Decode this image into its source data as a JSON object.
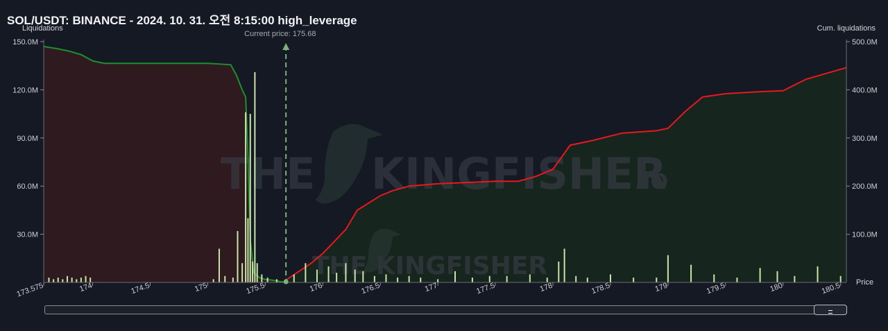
{
  "header": {
    "title": "SOL/USDT: BINANCE - 2024. 10. 31. 오전 8:15:00 high_leverage"
  },
  "watermark": {
    "brand": "THE KINGFISHER",
    "brand_large_left": "THE",
    "brand_large_right": "KINGFISHER",
    "suffix": ".IO"
  },
  "colors": {
    "background": "#151924",
    "long_fill": "#2e1a1f",
    "short_fill": "#17251f",
    "cum_long_line": "#1f8f2e",
    "cum_short_line": "#e8191d",
    "bars": "#c8e6a8",
    "price_marker": "#7fb07a"
  },
  "chart_data": {
    "type": "bar",
    "title": "SOL/USDT: BINANCE - 2024. 10. 31. 오전 8:15:00 high_leverage",
    "xlabel": "Price",
    "ylabel": "Liquidations",
    "y2label": "Cum. liquidations",
    "current_price": 175.68,
    "current_price_label": "Current price: 175.68",
    "xlim": [
      173.575,
      180.55
    ],
    "ylim": [
      0,
      150
    ],
    "y2lim": [
      0,
      500
    ],
    "x_ticks": [
      "173.575",
      "174",
      "174.5",
      "175",
      "175.5",
      "176",
      "176.5",
      "177",
      "177.5",
      "178",
      "178.5",
      "179",
      "179.5",
      "180",
      "180.5"
    ],
    "x_tick_values": [
      173.575,
      174,
      174.5,
      175,
      175.5,
      176,
      176.5,
      177,
      177.5,
      178,
      178.5,
      179,
      179.5,
      180,
      180.5
    ],
    "y_ticks": [
      "150.0M",
      "120.0M",
      "90.0M",
      "60.0M",
      "30.0M"
    ],
    "y_tick_values": [
      150,
      120,
      90,
      60,
      30
    ],
    "y2_ticks": [
      "500.0M",
      "400.0M",
      "300.0M",
      "200.0M",
      "100.0M"
    ],
    "y2_tick_values": [
      500,
      400,
      300,
      200,
      100
    ],
    "grid": false,
    "bars": {
      "name": "Liquidations",
      "unit": "M",
      "x": [
        173.62,
        173.66,
        173.7,
        173.74,
        173.78,
        173.82,
        173.86,
        173.9,
        173.94,
        173.98,
        175.05,
        175.1,
        175.15,
        175.22,
        175.26,
        175.3,
        175.33,
        175.35,
        175.37,
        175.39,
        175.41,
        175.43,
        175.47,
        175.52,
        175.6,
        175.75,
        175.85,
        175.95,
        176.05,
        176.12,
        176.2,
        176.28,
        176.35,
        176.45,
        176.55,
        176.65,
        176.75,
        176.85,
        177.0,
        177.15,
        177.3,
        177.45,
        177.6,
        177.8,
        177.95,
        178.05,
        178.1,
        178.2,
        178.3,
        178.5,
        178.7,
        178.9,
        179.0,
        179.2,
        179.4,
        179.6,
        179.8,
        179.95,
        180.1,
        180.3,
        180.5
      ],
      "values": [
        3,
        2,
        3,
        2,
        4,
        3,
        2,
        3,
        4,
        3,
        2,
        21,
        4,
        3,
        32,
        12,
        106,
        40,
        105,
        13,
        131,
        12,
        5,
        3,
        2,
        5,
        12,
        8,
        10,
        6,
        12,
        8,
        7,
        4,
        5,
        3,
        4,
        3,
        2,
        7,
        3,
        4,
        4,
        5,
        3,
        13,
        21,
        4,
        3,
        5,
        3,
        3,
        17,
        11,
        5,
        3,
        9,
        7,
        4,
        10,
        4
      ]
    },
    "series": [
      {
        "name": "Cum. liquidations",
        "side": "long",
        "axis": "y2",
        "x": [
          173.575,
          173.7,
          173.8,
          173.9,
          174.0,
          174.1,
          174.3,
          174.6,
          175.0,
          175.2,
          175.25,
          175.28,
          175.3,
          175.33,
          175.35,
          175.37,
          175.4,
          175.45,
          175.5,
          175.55,
          175.6,
          175.68
        ],
        "values": [
          490,
          485,
          480,
          473,
          460,
          455,
          455,
          455,
          455,
          452,
          430,
          412,
          400,
          385,
          260,
          90,
          20,
          10,
          6,
          5,
          3,
          0
        ]
      },
      {
        "name": "Cum. liquidations",
        "side": "short",
        "axis": "y2",
        "x": [
          175.68,
          175.9,
          176.0,
          176.2,
          176.3,
          176.5,
          176.6,
          176.75,
          177.0,
          177.5,
          177.7,
          177.85,
          178.0,
          178.15,
          178.35,
          178.6,
          178.9,
          179.0,
          179.15,
          179.3,
          179.5,
          179.8,
          180.0,
          180.2,
          180.55
        ],
        "values": [
          5,
          40,
          60,
          110,
          150,
          180,
          190,
          200,
          205,
          210,
          210,
          220,
          235,
          285,
          295,
          310,
          315,
          320,
          355,
          385,
          392,
          396,
          398,
          422,
          446
        ]
      }
    ]
  }
}
